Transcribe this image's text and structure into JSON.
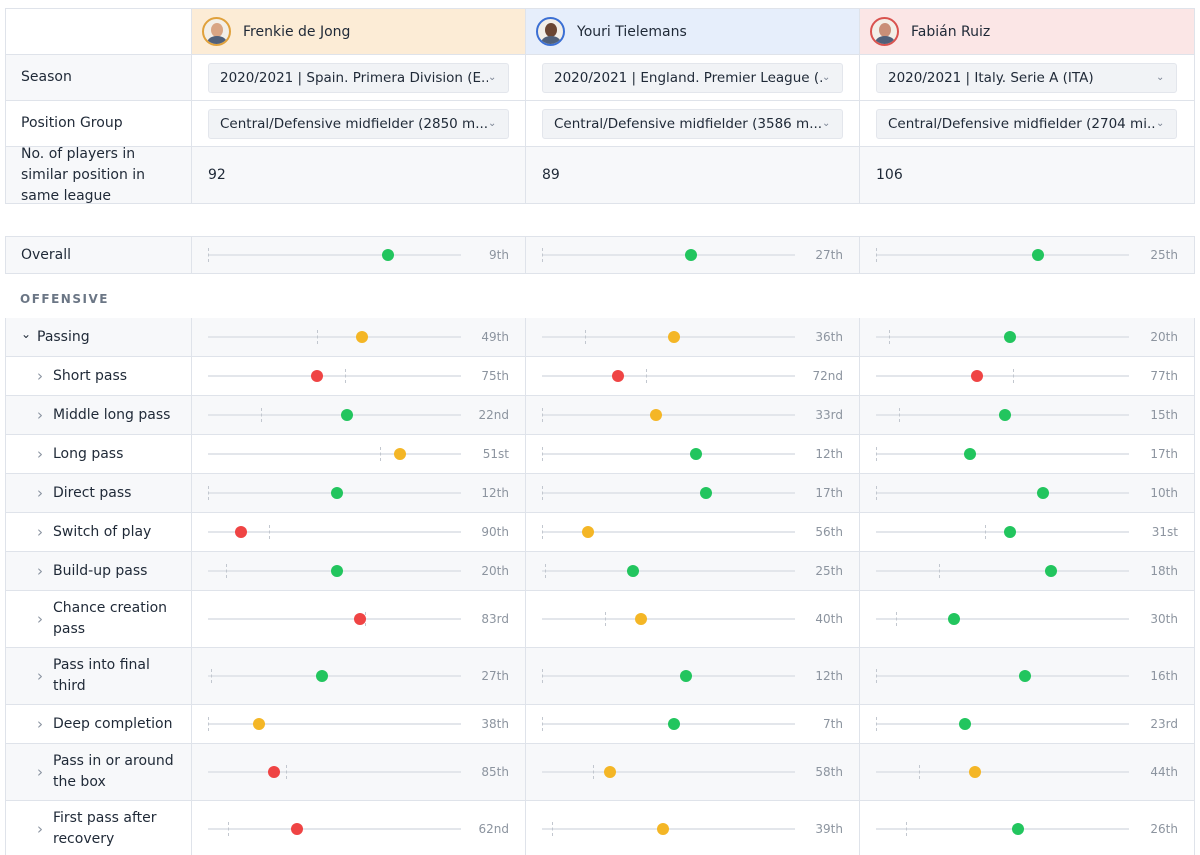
{
  "colors": {
    "good": "#22c55e",
    "mid": "#f4b626",
    "bad": "#ef4444"
  },
  "players": [
    {
      "name": "Frenkie de Jong",
      "avatar_ring": "#e0a13c",
      "skin": "#d9a584"
    },
    {
      "name": "Youri Tielemans",
      "avatar_ring": "#3b6fd4",
      "skin": "#6b4632"
    },
    {
      "name": "Fabián Ruiz",
      "avatar_ring": "#d9534f",
      "skin": "#c98f78"
    }
  ],
  "info": {
    "season_label": "Season",
    "seasons": [
      "2020/2021 | Spain. Primera Division (E...",
      "2020/2021 | England. Premier League (...",
      "2020/2021 | Italy. Serie A (ITA)"
    ],
    "position_label": "Position Group",
    "positions": [
      "Central/Defensive midfielder (2850 m...",
      "Central/Defensive midfielder (3586 m...",
      "Central/Defensive midfielder (2704 mi..."
    ],
    "count_label": "No. of players in similar position in same league",
    "counts": [
      "92",
      "89",
      "106"
    ]
  },
  "overall": {
    "label": "Overall",
    "cells": [
      {
        "rank": "9th",
        "pct": 0.71,
        "tick": 0.0,
        "color": "good"
      },
      {
        "rank": "27th",
        "pct": 0.59,
        "tick": 0.0,
        "color": "good"
      },
      {
        "rank": "25th",
        "pct": 0.64,
        "tick": 0.0,
        "color": "good"
      }
    ]
  },
  "section_title": "OFFENSIVE",
  "metrics": [
    {
      "label": "Passing",
      "kind": "group",
      "cells": [
        {
          "rank": "49th",
          "pct": 0.61,
          "tick": 0.43,
          "color": "mid"
        },
        {
          "rank": "36th",
          "pct": 0.52,
          "tick": 0.17,
          "color": "mid"
        },
        {
          "rank": "20th",
          "pct": 0.53,
          "tick": 0.05,
          "color": "good"
        }
      ]
    },
    {
      "label": "Short pass",
      "kind": "sub",
      "cells": [
        {
          "rank": "75th",
          "pct": 0.43,
          "tick": 0.54,
          "color": "bad"
        },
        {
          "rank": "72nd",
          "pct": 0.3,
          "tick": 0.41,
          "color": "bad"
        },
        {
          "rank": "77th",
          "pct": 0.4,
          "tick": 0.54,
          "color": "bad"
        }
      ]
    },
    {
      "label": "Middle long pass",
      "kind": "sub",
      "cells": [
        {
          "rank": "22nd",
          "pct": 0.55,
          "tick": 0.21,
          "color": "good"
        },
        {
          "rank": "33rd",
          "pct": 0.45,
          "tick": 0.0,
          "color": "mid"
        },
        {
          "rank": "15th",
          "pct": 0.51,
          "tick": 0.09,
          "color": "good"
        }
      ]
    },
    {
      "label": "Long pass",
      "kind": "sub",
      "cells": [
        {
          "rank": "51st",
          "pct": 0.76,
          "tick": 0.68,
          "color": "mid"
        },
        {
          "rank": "12th",
          "pct": 0.61,
          "tick": 0.0,
          "color": "good"
        },
        {
          "rank": "17th",
          "pct": 0.37,
          "tick": 0.0,
          "color": "good"
        }
      ]
    },
    {
      "label": "Direct pass",
      "kind": "sub",
      "cells": [
        {
          "rank": "12th",
          "pct": 0.51,
          "tick": 0.0,
          "color": "good"
        },
        {
          "rank": "17th",
          "pct": 0.65,
          "tick": 0.0,
          "color": "good"
        },
        {
          "rank": "10th",
          "pct": 0.66,
          "tick": 0.0,
          "color": "good"
        }
      ]
    },
    {
      "label": "Switch of play",
      "kind": "sub",
      "cells": [
        {
          "rank": "90th",
          "pct": 0.13,
          "tick": 0.24,
          "color": "bad"
        },
        {
          "rank": "56th",
          "pct": 0.18,
          "tick": 0.0,
          "color": "mid"
        },
        {
          "rank": "31st",
          "pct": 0.53,
          "tick": 0.43,
          "color": "good"
        }
      ]
    },
    {
      "label": "Build-up pass",
      "kind": "sub",
      "cells": [
        {
          "rank": "20th",
          "pct": 0.51,
          "tick": 0.07,
          "color": "good"
        },
        {
          "rank": "25th",
          "pct": 0.36,
          "tick": 0.01,
          "color": "good"
        },
        {
          "rank": "18th",
          "pct": 0.69,
          "tick": 0.25,
          "color": "good"
        }
      ]
    },
    {
      "label": "Chance creation pass",
      "kind": "sub",
      "tall": true,
      "cells": [
        {
          "rank": "83rd",
          "pct": 0.6,
          "tick": 0.62,
          "color": "bad"
        },
        {
          "rank": "40th",
          "pct": 0.39,
          "tick": 0.25,
          "color": "mid"
        },
        {
          "rank": "30th",
          "pct": 0.31,
          "tick": 0.08,
          "color": "good"
        }
      ]
    },
    {
      "label": "Pass into final third",
      "kind": "sub",
      "tall": true,
      "cells": [
        {
          "rank": "27th",
          "pct": 0.45,
          "tick": 0.01,
          "color": "good"
        },
        {
          "rank": "12th",
          "pct": 0.57,
          "tick": 0.0,
          "color": "good"
        },
        {
          "rank": "16th",
          "pct": 0.59,
          "tick": 0.0,
          "color": "good"
        }
      ]
    },
    {
      "label": "Deep completion",
      "kind": "sub",
      "cells": [
        {
          "rank": "38th",
          "pct": 0.2,
          "tick": 0.0,
          "color": "mid"
        },
        {
          "rank": "7th",
          "pct": 0.52,
          "tick": 0.0,
          "color": "good"
        },
        {
          "rank": "23rd",
          "pct": 0.35,
          "tick": 0.0,
          "color": "good"
        }
      ]
    },
    {
      "label": "Pass in or around the box",
      "kind": "sub",
      "tall": true,
      "cells": [
        {
          "rank": "85th",
          "pct": 0.26,
          "tick": 0.31,
          "color": "bad"
        },
        {
          "rank": "58th",
          "pct": 0.27,
          "tick": 0.2,
          "color": "mid"
        },
        {
          "rank": "44th",
          "pct": 0.39,
          "tick": 0.17,
          "color": "mid"
        }
      ]
    },
    {
      "label": "First pass after recovery",
      "kind": "sub",
      "tall": true,
      "cells": [
        {
          "rank": "62nd",
          "pct": 0.35,
          "tick": 0.08,
          "color": "bad"
        },
        {
          "rank": "39th",
          "pct": 0.48,
          "tick": 0.04,
          "color": "mid"
        },
        {
          "rank": "26th",
          "pct": 0.56,
          "tick": 0.12,
          "color": "good"
        }
      ]
    }
  ]
}
